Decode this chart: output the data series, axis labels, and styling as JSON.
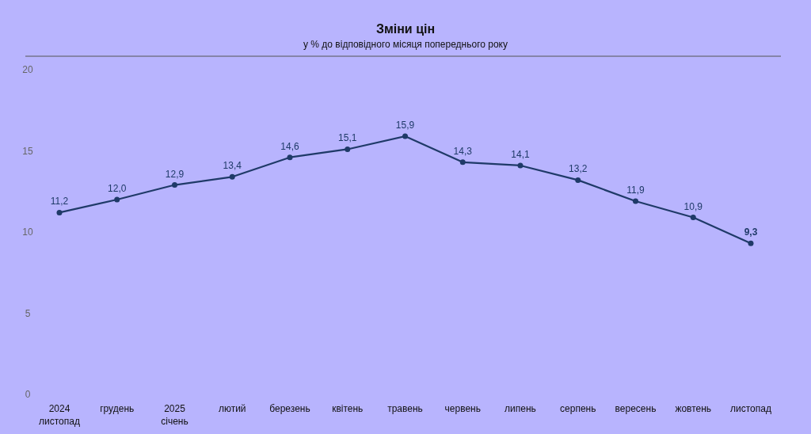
{
  "chart_data": {
    "type": "line",
    "title": "Зміни цін",
    "subtitle": "у % до відповідного місяця попереднього року",
    "categories": [
      "2024\nлистопад",
      "грудень",
      "2025\nсічень",
      "лютий",
      "березень",
      "квітень",
      "травень",
      "червень",
      "липень",
      "серпень",
      "вересень",
      "жовтень",
      "листопад"
    ],
    "series": [
      {
        "color": "#1f3a68",
        "values": [
          11.2,
          12.0,
          12.9,
          13.4,
          14.6,
          15.1,
          15.9,
          14.3,
          14.1,
          13.2,
          11.9,
          10.9,
          9.3
        ],
        "value_labels": [
          "11,2",
          "12,0",
          "12,9",
          "13,4",
          "14,6",
          "15,1",
          "15,9",
          "14,3",
          "14,1",
          "13,2",
          "11,9",
          "10,9",
          "9,3"
        ]
      }
    ],
    "ylim": [
      0,
      20
    ],
    "yticks": [
      0,
      5,
      10,
      15,
      20
    ],
    "grid": false,
    "marker": "circle",
    "line_style": "solid"
  }
}
